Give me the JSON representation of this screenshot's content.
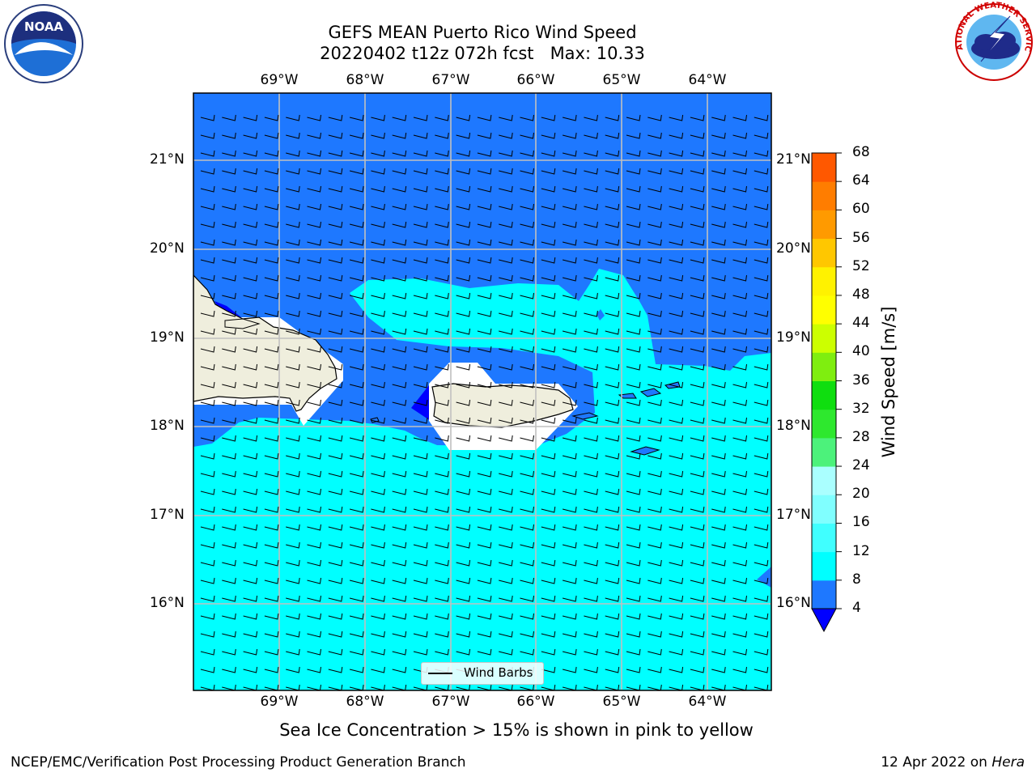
{
  "title": {
    "line1": "GEFS MEAN Puerto Rico Wind Speed",
    "line2": "20220402 t12z 072h fcst   Max: 10.33"
  },
  "map": {
    "lon_labels": [
      "69°W",
      "68°W",
      "67°W",
      "66°W",
      "65°W",
      "64°W"
    ],
    "lat_labels": [
      "21°N",
      "20°N",
      "19°N",
      "18°N",
      "17°N",
      "16°N"
    ],
    "land_color": "#efeedd",
    "colors": {
      "lt4": "#0000ff",
      "c4_8": "#1e78ff",
      "c8_12": "#00ffff",
      "grid": "#c0c0c0"
    }
  },
  "colorbar": {
    "title": "Wind Speed [m/s]",
    "ticks": [
      "68",
      "64",
      "60",
      "56",
      "52",
      "48",
      "44",
      "40",
      "36",
      "32",
      "28",
      "24",
      "20",
      "16",
      "12",
      "8",
      "4"
    ],
    "colors": [
      "#0000ff",
      "#1e78ff",
      "#00ffff",
      "#40ffff",
      "#80ffff",
      "#aaffff",
      "#4cf27b",
      "#2ee82e",
      "#0fde0f",
      "#7fee0f",
      "#ccff00",
      "#ffff00",
      "#fff200",
      "#ffc700",
      "#ff9a00",
      "#ff7d00",
      "#ff5800",
      "#ff2a00",
      "#ff0000"
    ]
  },
  "legend": {
    "label": "Wind Barbs"
  },
  "caption": "Sea Ice Concentration > 15% is shown in pink to yellow",
  "footer": {
    "left": "NCEP/EMC/Verification Post Processing Product Generation Branch",
    "right_prefix": "12 Apr 2022 on ",
    "right_italic": "Hera"
  },
  "logos": {
    "left_text": "NOAA",
    "right_text": "NATIONAL WEATHER SERVICE"
  }
}
